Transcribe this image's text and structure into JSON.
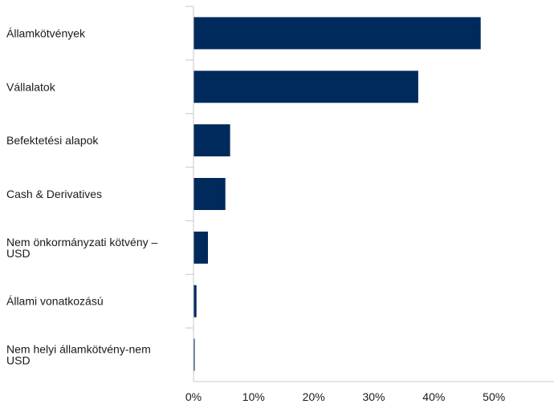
{
  "chart_data": {
    "type": "bar",
    "orientation": "horizontal",
    "categories": [
      [
        "Államkötvények"
      ],
      [
        "Vállalatok"
      ],
      [
        "Befektetési alapok"
      ],
      [
        "Cash & Derivatives"
      ],
      [
        "Nem önkormányzati kötvény –",
        "USD"
      ],
      [
        "Állami vonatkozású"
      ],
      [
        "Nem helyi államkötvény-nem",
        "USD"
      ]
    ],
    "values": [
      47.8,
      37.4,
      6.1,
      5.3,
      2.4,
      0.5,
      0.2
    ],
    "xlim": [
      0,
      60
    ],
    "x_ticks": [
      "0%",
      "10%",
      "20%",
      "30%",
      "40%",
      "50%"
    ],
    "x_tick_values": [
      0,
      10,
      20,
      30,
      40,
      50
    ],
    "grid": false,
    "bar_color": "#002a5c",
    "axis_color": "#c8c8c8"
  }
}
